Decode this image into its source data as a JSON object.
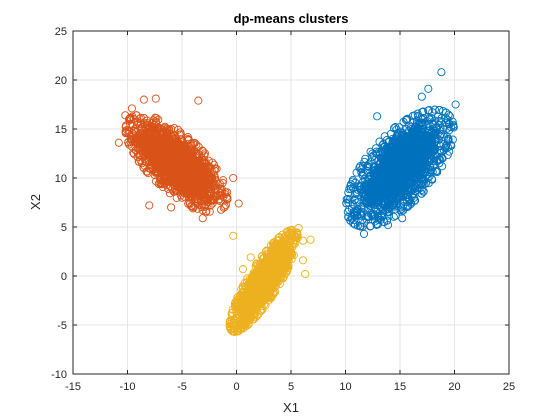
{
  "chart_data": {
    "type": "scatter",
    "title": "dp-means clusters",
    "xlabel": "X1",
    "ylabel": "X2",
    "xlim": [
      -15,
      25
    ],
    "ylim": [
      -10,
      25
    ],
    "xticks": [
      -15,
      -10,
      -5,
      0,
      5,
      10,
      15,
      20,
      25
    ],
    "yticks": [
      -10,
      -5,
      0,
      5,
      10,
      15,
      20,
      25
    ],
    "grid": true,
    "marker": "open-circle",
    "series": [
      {
        "color": "#D95319",
        "center": [
          -5.5,
          11.5
        ],
        "spread": [
          1.8,
          1.9
        ],
        "correlation": -0.7,
        "points": [
          [
            -10.8,
            13.6
          ],
          [
            -10.2,
            16.4
          ],
          [
            -9.6,
            17.1
          ],
          [
            -8.5,
            18.0
          ],
          [
            -7.4,
            18.1
          ],
          [
            -8.0,
            7.2
          ],
          [
            -3.5,
            17.9
          ],
          [
            -2.4,
            9.3
          ],
          [
            -2.4,
            7.7
          ],
          [
            -1.9,
            8.2
          ],
          [
            -4.0,
            6.9
          ],
          [
            -2.8,
            6.5
          ],
          [
            -3.1,
            5.9
          ],
          [
            0.2,
            7.4
          ],
          [
            -6.0,
            7.0
          ],
          [
            -0.3,
            10.0
          ]
        ]
      },
      {
        "color": "#0072BD",
        "center": [
          15.0,
          11.0
        ],
        "spread": [
          1.9,
          2.3
        ],
        "correlation": 0.65,
        "points": [
          [
            10.8,
            5.7
          ],
          [
            11.7,
            4.3
          ],
          [
            12.3,
            5.1
          ],
          [
            17.0,
            18.3
          ],
          [
            17.6,
            19.1
          ],
          [
            18.8,
            20.8
          ],
          [
            20.1,
            17.5
          ],
          [
            19.4,
            14.0
          ],
          [
            16.6,
            8.8
          ],
          [
            15.2,
            5.9
          ],
          [
            13.9,
            5.2
          ],
          [
            10.5,
            8.9
          ],
          [
            12.9,
            16.3
          ]
        ]
      },
      {
        "color": "#EDB120",
        "center": [
          2.5,
          -0.5
        ],
        "spread": [
          1.2,
          2.0
        ],
        "correlation": 0.85,
        "points": [
          [
            -0.3,
            4.1
          ],
          [
            0.1,
            -5.3
          ],
          [
            0.5,
            -4.4
          ],
          [
            5.7,
            4.9
          ],
          [
            5.2,
            3.4
          ],
          [
            6.1,
            3.6
          ],
          [
            6.8,
            3.7
          ],
          [
            6.1,
            1.6
          ],
          [
            6.3,
            0.2
          ],
          [
            1.3,
            1.9
          ],
          [
            0.6,
            0.7
          ],
          [
            0.7,
            -2.8
          ],
          [
            -0.1,
            -3.2
          ]
        ]
      }
    ]
  }
}
